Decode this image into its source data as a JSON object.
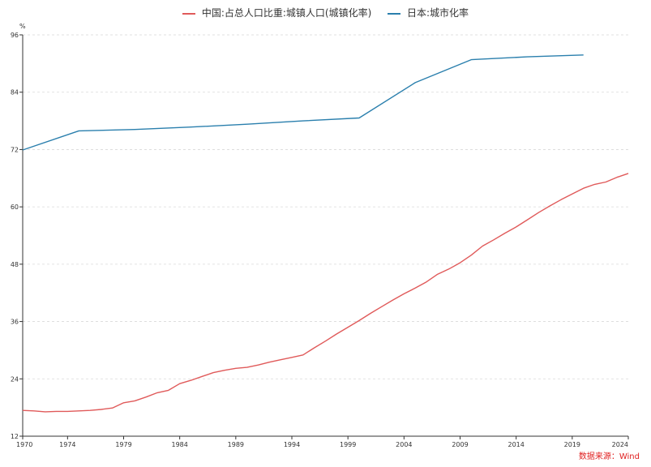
{
  "chart_data": {
    "type": "line",
    "y_unit": "%",
    "ylim": [
      12,
      96
    ],
    "yticks": [
      12,
      24,
      36,
      48,
      60,
      72,
      84,
      96
    ],
    "xlim": [
      1970,
      2024
    ],
    "xticks": [
      1970,
      1974,
      1979,
      1984,
      1989,
      1994,
      1999,
      2004,
      2009,
      2014,
      2019,
      2024
    ],
    "grid": "horizontal dashed",
    "legend_position": "top-center",
    "series": [
      {
        "name": "中国:占总人口比重:城镇人口(城镇化率)",
        "color": "#e05a5a",
        "points": [
          [
            1970,
            17.4
          ],
          [
            1971,
            17.3
          ],
          [
            1972,
            17.1
          ],
          [
            1973,
            17.2
          ],
          [
            1974,
            17.2
          ],
          [
            1975,
            17.3
          ],
          [
            1976,
            17.4
          ],
          [
            1977,
            17.6
          ],
          [
            1978,
            17.9
          ],
          [
            1979,
            19.0
          ],
          [
            1980,
            19.4
          ],
          [
            1981,
            20.2
          ],
          [
            1982,
            21.1
          ],
          [
            1983,
            21.6
          ],
          [
            1984,
            23.0
          ],
          [
            1985,
            23.7
          ],
          [
            1986,
            24.5
          ],
          [
            1987,
            25.3
          ],
          [
            1988,
            25.8
          ],
          [
            1989,
            26.2
          ],
          [
            1990,
            26.4
          ],
          [
            1991,
            26.9
          ],
          [
            1992,
            27.5
          ],
          [
            1993,
            28.0
          ],
          [
            1994,
            28.5
          ],
          [
            1995,
            29.0
          ],
          [
            1996,
            30.5
          ],
          [
            1997,
            31.9
          ],
          [
            1998,
            33.4
          ],
          [
            1999,
            34.8
          ],
          [
            2000,
            36.2
          ],
          [
            2001,
            37.7
          ],
          [
            2002,
            39.1
          ],
          [
            2003,
            40.5
          ],
          [
            2004,
            41.8
          ],
          [
            2005,
            43.0
          ],
          [
            2006,
            44.3
          ],
          [
            2007,
            45.9
          ],
          [
            2008,
            47.0
          ],
          [
            2009,
            48.3
          ],
          [
            2010,
            49.9
          ],
          [
            2011,
            51.8
          ],
          [
            2012,
            53.1
          ],
          [
            2013,
            54.5
          ],
          [
            2014,
            55.8
          ],
          [
            2015,
            57.3
          ],
          [
            2016,
            58.8
          ],
          [
            2017,
            60.2
          ],
          [
            2018,
            61.5
          ],
          [
            2019,
            62.7
          ],
          [
            2020,
            63.9
          ],
          [
            2021,
            64.7
          ],
          [
            2022,
            65.2
          ],
          [
            2023,
            66.2
          ],
          [
            2024,
            67.0
          ]
        ]
      },
      {
        "name": "日本:城市化率",
        "color": "#2a7fad",
        "points": [
          [
            1970,
            71.9
          ],
          [
            1975,
            75.9
          ],
          [
            1980,
            76.2
          ],
          [
            1985,
            76.7
          ],
          [
            1990,
            77.3
          ],
          [
            1995,
            78.0
          ],
          [
            2000,
            78.6
          ],
          [
            2005,
            86.0
          ],
          [
            2010,
            90.8
          ],
          [
            2015,
            91.4
          ],
          [
            2020,
            91.8
          ]
        ]
      }
    ]
  },
  "source_label": "数据来源：Wind"
}
